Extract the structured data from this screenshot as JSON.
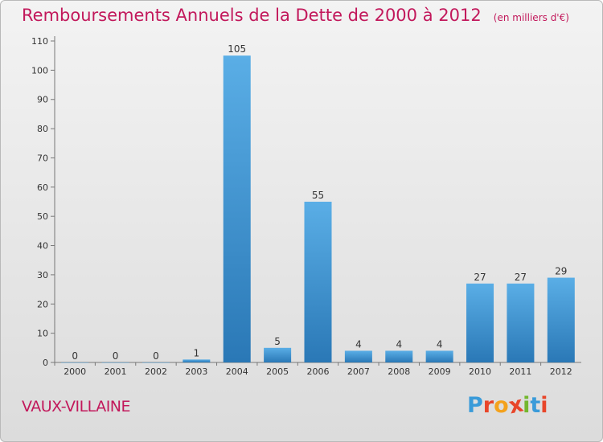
{
  "header": {
    "title": "Remboursements Annuels de la Dette de 2000 à 2012",
    "unit": "(en milliers d'€)"
  },
  "footer": {
    "commune": "VAUX-VILLAINE",
    "logo_text": "Proxiti",
    "logo_colors": [
      "#3a9bd9",
      "#e8462a",
      "#f4a21d",
      "#e8462a",
      "#74b72e",
      "#3a9bd9",
      "#e8462a"
    ]
  },
  "chart_data": {
    "type": "bar",
    "title": "Remboursements Annuels de la Dette de 2000 à 2012",
    "subtitle": "(en milliers d'€)",
    "categories": [
      "2000",
      "2001",
      "2002",
      "2003",
      "2004",
      "2005",
      "2006",
      "2007",
      "2008",
      "2009",
      "2010",
      "2011",
      "2012"
    ],
    "values": [
      0,
      0,
      0,
      1,
      105,
      5,
      55,
      4,
      4,
      4,
      27,
      27,
      29
    ],
    "ylim": [
      0,
      110
    ],
    "yticks": [
      0,
      10,
      20,
      30,
      40,
      50,
      60,
      70,
      80,
      90,
      100,
      110
    ],
    "bar_color_light": "#5aaee6",
    "bar_color_dark": "#2a78b6",
    "grid": false,
    "legend": "none"
  }
}
